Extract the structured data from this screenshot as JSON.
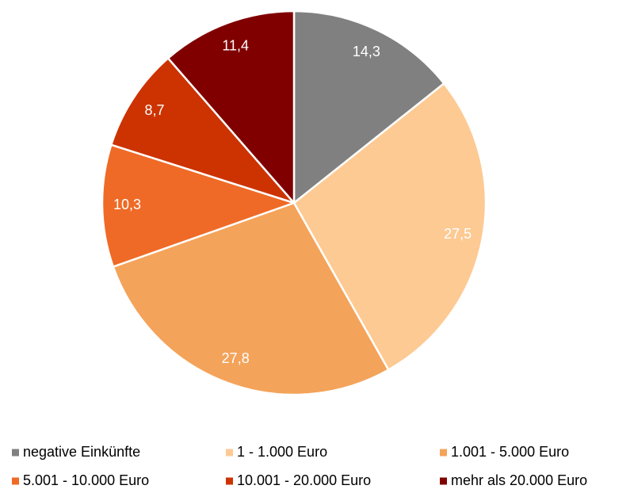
{
  "chart_data": {
    "type": "pie",
    "categories": [
      "negative Einkünfte",
      "1 - 1.000 Euro",
      "1.001 - 5.000 Euro",
      "5.001 - 10.000 Euro",
      "10.001 - 20.000 Euro",
      "mehr als 20.000 Euro"
    ],
    "values": [
      14.3,
      27.5,
      27.8,
      10.3,
      8.7,
      11.4
    ],
    "value_labels": [
      "14,3",
      "27,5",
      "27,8",
      "10,3",
      "8,7",
      "11,4"
    ],
    "colors": [
      "#808080",
      "#fdca93",
      "#f4a35a",
      "#ef6a26",
      "#cc3300",
      "#800000"
    ],
    "legend": "bottom"
  }
}
